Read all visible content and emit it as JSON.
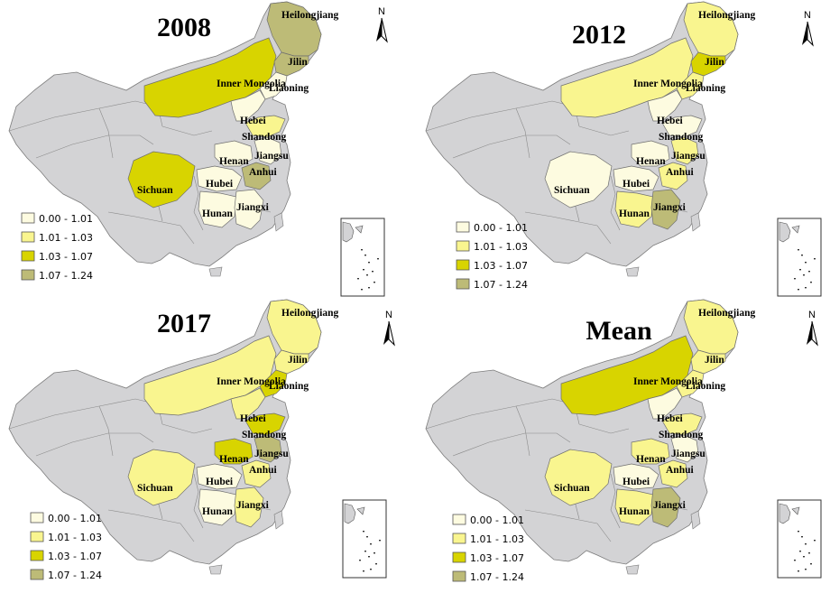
{
  "legend": {
    "classes": [
      {
        "label": "0.00 - 1.01",
        "color": "#fdfbe0"
      },
      {
        "label": "1.01 - 1.03",
        "color": "#f9f58f"
      },
      {
        "label": "1.03 - 1.07",
        "color": "#d8d400"
      },
      {
        "label": "1.07 - 1.24",
        "color": "#bdbb77"
      }
    ]
  },
  "north_arrow": {
    "letter": "N"
  },
  "panels": [
    {
      "title": "2008",
      "provinces": {
        "Heilongjiang": 3,
        "Jilin": 3,
        "Inner Mongolia": 2,
        "Liaoning": 0,
        "Hebei": 0,
        "Shandong": 1,
        "Henan": 0,
        "Jiangsu": 0,
        "Anhui": 3,
        "Hubei": 0,
        "Sichuan": 2,
        "Hunan": 0,
        "Jiangxi": 0
      }
    },
    {
      "title": "2012",
      "provinces": {
        "Heilongjiang": 1,
        "Jilin": 2,
        "Inner Mongolia": 1,
        "Liaoning": 1,
        "Hebei": 0,
        "Shandong": 0,
        "Henan": 0,
        "Jiangsu": 1,
        "Anhui": 1,
        "Hubei": 0,
        "Sichuan": 0,
        "Hunan": 1,
        "Jiangxi": 3
      }
    },
    {
      "title": "2017",
      "provinces": {
        "Heilongjiang": 1,
        "Jilin": 1,
        "Inner Mongolia": 1,
        "Liaoning": 2,
        "Hebei": 1,
        "Shandong": 2,
        "Henan": 2,
        "Jiangsu": 3,
        "Anhui": 1,
        "Hubei": 0,
        "Sichuan": 1,
        "Hunan": 0,
        "Jiangxi": 1
      }
    },
    {
      "title": "Mean",
      "provinces": {
        "Heilongjiang": 1,
        "Jilin": 1,
        "Inner Mongolia": 2,
        "Liaoning": 1,
        "Hebei": 0,
        "Shandong": 1,
        "Henan": 1,
        "Jiangsu": 0,
        "Anhui": 1,
        "Hubei": 0,
        "Sichuan": 1,
        "Hunan": 1,
        "Jiangxi": 3
      }
    }
  ]
}
